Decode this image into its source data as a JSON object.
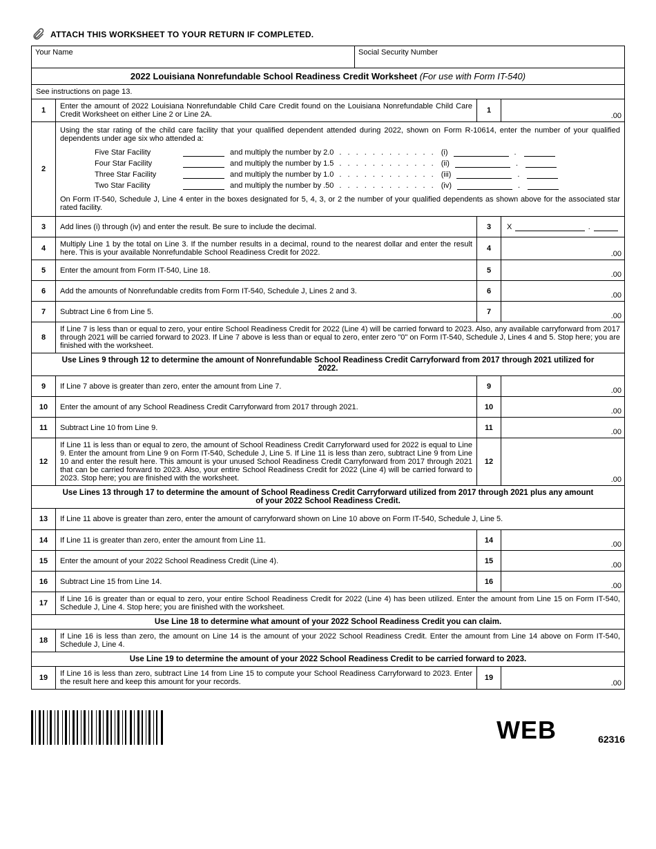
{
  "attach_text": "ATTACH THIS WORKSHEET TO YOUR RETURN IF COMPLETED.",
  "name_label": "Your Name",
  "ssn_label": "Social Security Number",
  "title_bold": "2022 Louisiana Nonrefundable School Readiness Credit Worksheet",
  "title_italic": "(For use with Form IT-540)",
  "instructions": "See instructions on page 13.",
  "cents": ".00",
  "rows": {
    "r1": {
      "n": "1",
      "d": "Enter the amount of 2022 Louisiana Nonrefundable Child Care Credit found on the Louisiana Nonrefundable Child Care Credit Worksheet on either Line 2 or Line 2A."
    },
    "r2": {
      "n": "2",
      "intro": "Using the star rating of the child care facility that your qualified dependent attended during 2022, shown on Form R-10614, enter the number of your qualified dependents under age six who attended a:",
      "stars": [
        {
          "label": "Five Star Facility",
          "mult": "and multiply the number by 2.0",
          "roman": "(i)"
        },
        {
          "label": "Four Star Facility",
          "mult": "and multiply the number by 1.5",
          "roman": "(ii)"
        },
        {
          "label": "Three Star Facility",
          "mult": "and multiply the number by 1.0",
          "roman": "(iii)"
        },
        {
          "label": "Two Star Facility",
          "mult": "and multiply the number by .50",
          "roman": "(iv)"
        }
      ],
      "dots": ". . . . . . . . . . . .",
      "outro": "On Form IT-540, Schedule J, Line 4 enter in the boxes designated for 5, 4, 3, or 2 the number of your qualified dependents as shown above for the associated star rated facility."
    },
    "r3": {
      "n": "3",
      "d": "Add lines (i) through (iv) and enter the result. Be sure to include the decimal.",
      "x": "X"
    },
    "r3_dot": ".",
    "r4": {
      "n": "4",
      "d": "Multiply Line 1 by the total on Line 3. If the number results in a decimal, round to the nearest dollar and enter the result here. This is your available Nonrefundable School Readiness Credit for 2022."
    },
    "r5": {
      "n": "5",
      "d": "Enter the amount from Form IT-540, Line 18."
    },
    "r6": {
      "n": "6",
      "d": "Add the amounts of Nonrefundable credits from Form IT-540, Schedule J, Lines 2 and 3."
    },
    "r7": {
      "n": "7",
      "d": "Subtract Line 6 from Line 5."
    },
    "r8": {
      "n": "8",
      "d": "If Line 7 is less than or equal to zero, your entire School Readiness Credit for 2022 (Line 4) will be carried forward to 2023. Also, any available carryforward from 2017 through 2021 will be carried forward to 2023. If Line 7 above is less than or equal to zero, enter zero \"0\" on Form IT-540, Schedule J, Lines 4 and 5. Stop here; you are finished with the worksheet."
    },
    "sec1": "Use Lines 9 through 12 to determine the amount of Nonrefundable School Readiness Credit Carryforward from 2017 through 2021 utilized for 2022.",
    "r9": {
      "n": "9",
      "d": "If Line 7 above is greater than zero, enter the amount from Line 7."
    },
    "r10": {
      "n": "10",
      "d": "Enter the amount of any School Readiness Credit Carryforward from 2017 through 2021."
    },
    "r11": {
      "n": "11",
      "d": "Subtract Line 10 from Line 9."
    },
    "r12": {
      "n": "12",
      "d": "If Line 11 is less than or equal to zero, the amount of School Readiness Credit Carryforward used for 2022 is equal to Line 9. Enter the amount from Line 9 on Form IT-540, Schedule J, Line 5. If Line 11 is less than zero, subtract Line 9 from Line 10 and enter the result here. This amount is your unused School Readiness Credit Carryforward from 2017 through 2021 that can be carried forward to 2023. Also, your entire School Readiness Credit for 2022 (Line 4) will be carried forward to 2023. Stop here; you are finished with the worksheet."
    },
    "sec2": "Use Lines 13 through 17 to determine the amount of School Readiness Credit Carryforward utilized from 2017 through 2021 plus any amount of your 2022 School Readiness Credit.",
    "r13": {
      "n": "13",
      "d": "If Line 11 above is greater than zero, enter the amount of carryforward shown on Line 10 above on Form IT-540, Schedule J, Line 5."
    },
    "r14": {
      "n": "14",
      "d": "If Line 11 is greater than zero, enter the amount from Line 11."
    },
    "r15": {
      "n": "15",
      "d": "Enter the amount of your 2022 School Readiness Credit (Line 4)."
    },
    "r16": {
      "n": "16",
      "d": "Subtract Line 15 from Line 14."
    },
    "r17": {
      "n": "17",
      "d": "If Line 16 is greater than or equal to zero, your entire School Readiness Credit for 2022 (Line 4) has been utilized. Enter the amount from Line 15 on Form IT-540, Schedule J, Line 4. Stop here; you are finished with the worksheet."
    },
    "sec3": "Use Line 18 to determine what amount of your 2022 School Readiness Credit you can claim.",
    "r18": {
      "n": "18",
      "d": "If Line 16 is less than zero, the amount on Line 14 is the amount of your 2022 School Readiness Credit. Enter the amount from Line 14 above on Form IT-540, Schedule J, Line 4."
    },
    "sec4": "Use Line 19 to determine the amount of your 2022 School Readiness Credit to be carried forward to 2023.",
    "r19": {
      "n": "19",
      "d": "If Line 16 is less than zero, subtract Line 14 from Line 15 to compute your School Readiness Carryforward to 2023. Enter the result here and keep this amount for your records."
    }
  },
  "footer": {
    "web": "WEB",
    "code": "62316"
  },
  "colors": {
    "text": "#000000",
    "bg": "#ffffff",
    "border": "#000000"
  }
}
